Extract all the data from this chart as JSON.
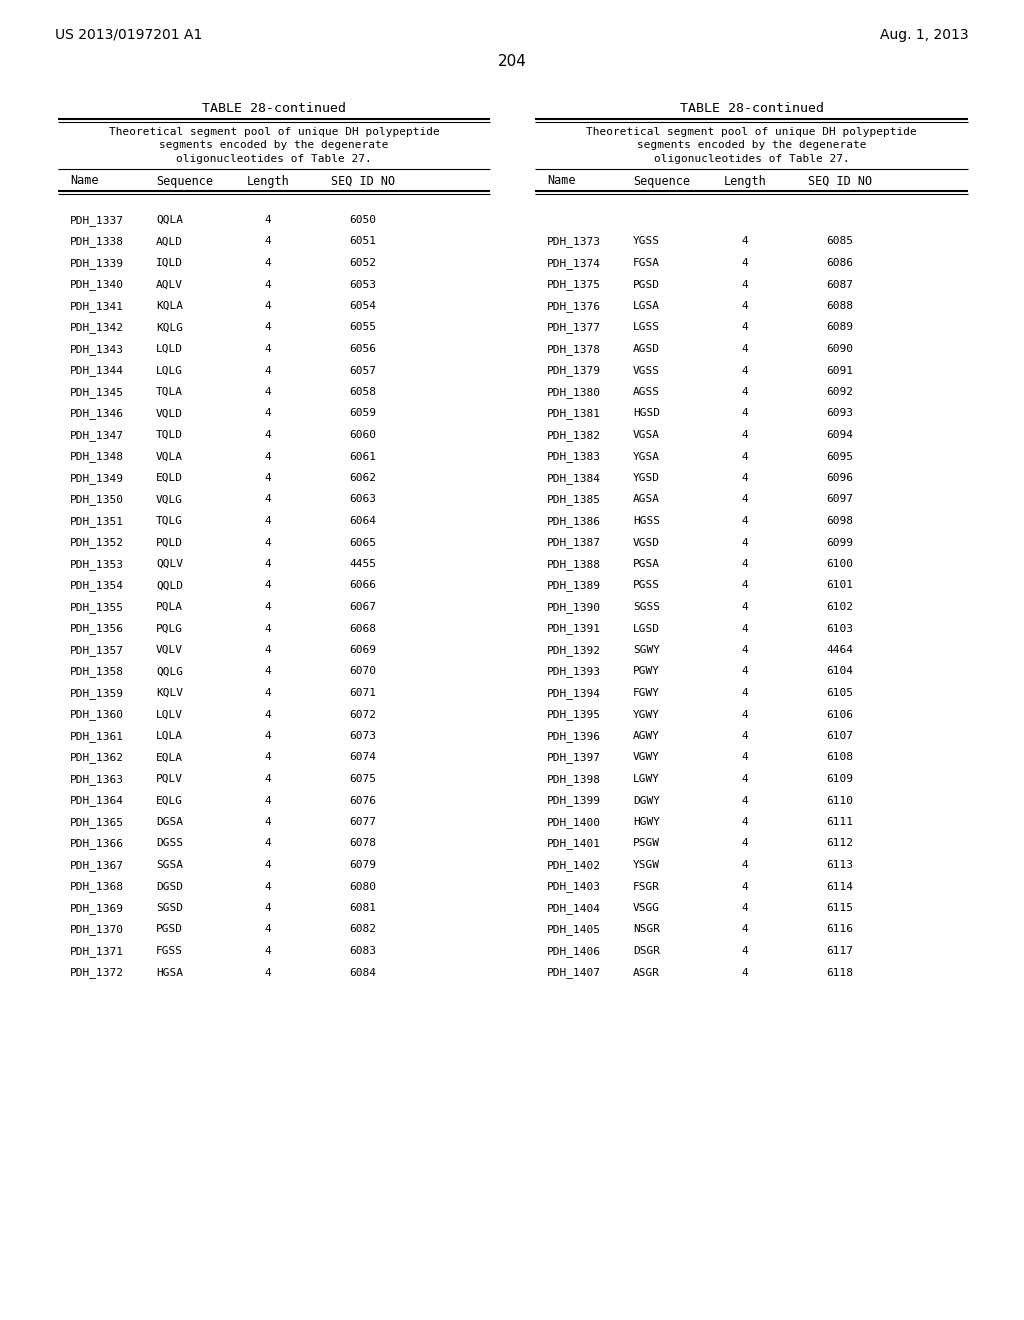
{
  "page_header_left": "US 2013/0197201 A1",
  "page_header_right": "Aug. 1, 2013",
  "page_number": "204",
  "table_title": "TABLE 28-continued",
  "table_description": "Theoretical segment pool of unique DH polypeptide\nsegments encoded by the degenerate\noligonucleotides of Table 27.",
  "col_headers": [
    "Name",
    "Sequence",
    "Length",
    "SEQ ID NO"
  ],
  "left_data": [
    [
      "PDH_1337",
      "QQLA",
      "4",
      "6050"
    ],
    [
      "PDH_1338",
      "AQLD",
      "4",
      "6051"
    ],
    [
      "PDH_1339",
      "IQLD",
      "4",
      "6052"
    ],
    [
      "PDH_1340",
      "AQLV",
      "4",
      "6053"
    ],
    [
      "PDH_1341",
      "KQLA",
      "4",
      "6054"
    ],
    [
      "PDH_1342",
      "KQLG",
      "4",
      "6055"
    ],
    [
      "PDH_1343",
      "LQLD",
      "4",
      "6056"
    ],
    [
      "PDH_1344",
      "LQLG",
      "4",
      "6057"
    ],
    [
      "PDH_1345",
      "TQLA",
      "4",
      "6058"
    ],
    [
      "PDH_1346",
      "VQLD",
      "4",
      "6059"
    ],
    [
      "PDH_1347",
      "TQLD",
      "4",
      "6060"
    ],
    [
      "PDH_1348",
      "VQLA",
      "4",
      "6061"
    ],
    [
      "PDH_1349",
      "EQLD",
      "4",
      "6062"
    ],
    [
      "PDH_1350",
      "VQLG",
      "4",
      "6063"
    ],
    [
      "PDH_1351",
      "TQLG",
      "4",
      "6064"
    ],
    [
      "PDH_1352",
      "PQLD",
      "4",
      "6065"
    ],
    [
      "PDH_1353",
      "QQLV",
      "4",
      "4455"
    ],
    [
      "PDH_1354",
      "QQLD",
      "4",
      "6066"
    ],
    [
      "PDH_1355",
      "PQLA",
      "4",
      "6067"
    ],
    [
      "PDH_1356",
      "PQLG",
      "4",
      "6068"
    ],
    [
      "PDH_1357",
      "VQLV",
      "4",
      "6069"
    ],
    [
      "PDH_1358",
      "QQLG",
      "4",
      "6070"
    ],
    [
      "PDH_1359",
      "KQLV",
      "4",
      "6071"
    ],
    [
      "PDH_1360",
      "LQLV",
      "4",
      "6072"
    ],
    [
      "PDH_1361",
      "LQLA",
      "4",
      "6073"
    ],
    [
      "PDH_1362",
      "EQLA",
      "4",
      "6074"
    ],
    [
      "PDH_1363",
      "PQLV",
      "4",
      "6075"
    ],
    [
      "PDH_1364",
      "EQLG",
      "4",
      "6076"
    ],
    [
      "PDH_1365",
      "DGSA",
      "4",
      "6077"
    ],
    [
      "PDH_1366",
      "DGSS",
      "4",
      "6078"
    ],
    [
      "PDH_1367",
      "SGSA",
      "4",
      "6079"
    ],
    [
      "PDH_1368",
      "DGSD",
      "4",
      "6080"
    ],
    [
      "PDH_1369",
      "SGSD",
      "4",
      "6081"
    ],
    [
      "PDH_1370",
      "PGSD",
      "4",
      "6082"
    ],
    [
      "PDH_1371",
      "FGSS",
      "4",
      "6083"
    ],
    [
      "PDH_1372",
      "HGSA",
      "4",
      "6084"
    ]
  ],
  "right_data": [
    [
      "PDH_1373",
      "YGSS",
      "4",
      "6085"
    ],
    [
      "PDH_1374",
      "FGSA",
      "4",
      "6086"
    ],
    [
      "PDH_1375",
      "PGSD",
      "4",
      "6087"
    ],
    [
      "PDH_1376",
      "LGSA",
      "4",
      "6088"
    ],
    [
      "PDH_1377",
      "LGSS",
      "4",
      "6089"
    ],
    [
      "PDH_1378",
      "AGSD",
      "4",
      "6090"
    ],
    [
      "PDH_1379",
      "VGSS",
      "4",
      "6091"
    ],
    [
      "PDH_1380",
      "AGSS",
      "4",
      "6092"
    ],
    [
      "PDH_1381",
      "HGSD",
      "4",
      "6093"
    ],
    [
      "PDH_1382",
      "VGSA",
      "4",
      "6094"
    ],
    [
      "PDH_1383",
      "YGSA",
      "4",
      "6095"
    ],
    [
      "PDH_1384",
      "YGSD",
      "4",
      "6096"
    ],
    [
      "PDH_1385",
      "AGSA",
      "4",
      "6097"
    ],
    [
      "PDH_1386",
      "HGSS",
      "4",
      "6098"
    ],
    [
      "PDH_1387",
      "VGSD",
      "4",
      "6099"
    ],
    [
      "PDH_1388",
      "PGSA",
      "4",
      "6100"
    ],
    [
      "PDH_1389",
      "PGSS",
      "4",
      "6101"
    ],
    [
      "PDH_1390",
      "SGSS",
      "4",
      "6102"
    ],
    [
      "PDH_1391",
      "LGSD",
      "4",
      "6103"
    ],
    [
      "PDH_1392",
      "SGWY",
      "4",
      "4464"
    ],
    [
      "PDH_1393",
      "PGWY",
      "4",
      "6104"
    ],
    [
      "PDH_1394",
      "FGWY",
      "4",
      "6105"
    ],
    [
      "PDH_1395",
      "YGWY",
      "4",
      "6106"
    ],
    [
      "PDH_1396",
      "AGWY",
      "4",
      "6107"
    ],
    [
      "PDH_1397",
      "VGWY",
      "4",
      "6108"
    ],
    [
      "PDH_1398",
      "LGWY",
      "4",
      "6109"
    ],
    [
      "PDH_1399",
      "DGWY",
      "4",
      "6110"
    ],
    [
      "PDH_1400",
      "HGWY",
      "4",
      "6111"
    ],
    [
      "PDH_1401",
      "PSGW",
      "4",
      "6112"
    ],
    [
      "PDH_1402",
      "YSGW",
      "4",
      "6113"
    ],
    [
      "PDH_1403",
      "FSGR",
      "4",
      "6114"
    ],
    [
      "PDH_1404",
      "VSGG",
      "4",
      "6115"
    ],
    [
      "PDH_1405",
      "NSGR",
      "4",
      "6116"
    ],
    [
      "PDH_1406",
      "DSGR",
      "4",
      "6117"
    ],
    [
      "PDH_1407",
      "ASGR",
      "4",
      "6118"
    ]
  ],
  "bg_color": "#ffffff",
  "text_color": "#000000"
}
